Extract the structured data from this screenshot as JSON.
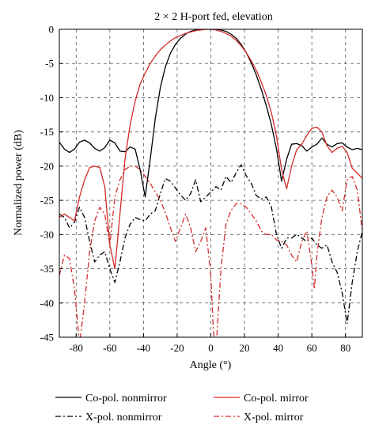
{
  "chart_data": {
    "type": "line",
    "title": "2 × 2 H-port fed, elevation",
    "xlabel": "Angle (°)",
    "ylabel": "Normalized power (dB)",
    "xlim": [
      -90,
      90
    ],
    "ylim": [
      -45,
      0
    ],
    "xticks": [
      -80,
      -60,
      -40,
      -20,
      0,
      20,
      40,
      60,
      80
    ],
    "yticks": [
      0,
      -5,
      -10,
      -15,
      -20,
      -25,
      -30,
      -35,
      -40,
      -45
    ],
    "grid": "dashed",
    "legend_position": "bottom, below plot, two columns",
    "series": [
      {
        "name": "Co-pol. nonmirror",
        "color": "#000000",
        "dash": "solid",
        "x": [
          -90,
          -87,
          -84,
          -81,
          -78,
          -75,
          -72,
          -69,
          -66,
          -63,
          -60,
          -57,
          -54,
          -51,
          -48,
          -45,
          -42,
          -39,
          -36,
          -33,
          -30,
          -27,
          -24,
          -21,
          -18,
          -15,
          -12,
          -9,
          -6,
          -3,
          0,
          3,
          6,
          9,
          12,
          15,
          18,
          21,
          24,
          27,
          30,
          33,
          36,
          39,
          42,
          45,
          48,
          51,
          54,
          57,
          60,
          63,
          66,
          69,
          72,
          75,
          78,
          81,
          84,
          87,
          90
        ],
        "y": [
          -16.5,
          -17.5,
          -18.0,
          -17.5,
          -16.5,
          -16.2,
          -16.6,
          -17.4,
          -17.8,
          -17.3,
          -16.2,
          -16.6,
          -17.8,
          -17.9,
          -17.2,
          -17.5,
          -20.5,
          -24.5,
          -19.0,
          -13.0,
          -8.5,
          -5.5,
          -3.5,
          -2.2,
          -1.3,
          -0.7,
          -0.3,
          -0.1,
          0.0,
          0.0,
          0.0,
          0.0,
          -0.1,
          -0.3,
          -0.7,
          -1.3,
          -2.2,
          -3.4,
          -4.9,
          -6.7,
          -8.8,
          -11.2,
          -14.0,
          -17.5,
          -22.2,
          -19.0,
          -16.8,
          -16.7,
          -17.0,
          -17.8,
          -17.2,
          -16.8,
          -15.9,
          -16.8,
          -17.2,
          -16.7,
          -16.6,
          -17.2,
          -17.6,
          -17.4,
          -17.6
        ]
      },
      {
        "name": "Co-pol. mirror",
        "color": "#d42a2a",
        "dash": "solid",
        "x": [
          -90,
          -87,
          -84,
          -81,
          -78,
          -75,
          -72,
          -69,
          -66,
          -63,
          -60,
          -57,
          -54,
          -51,
          -48,
          -45,
          -42,
          -39,
          -36,
          -33,
          -30,
          -27,
          -24,
          -21,
          -18,
          -15,
          -12,
          -9,
          -6,
          -3,
          0,
          3,
          6,
          9,
          12,
          15,
          18,
          21,
          24,
          27,
          30,
          33,
          36,
          39,
          42,
          45,
          48,
          51,
          54,
          57,
          60,
          63,
          66,
          69,
          72,
          75,
          78,
          81,
          84,
          87,
          90
        ],
        "y": [
          -27.5,
          -27.0,
          -27.5,
          -28.0,
          -24.5,
          -22.0,
          -20.2,
          -20.0,
          -20.2,
          -23.0,
          -31.5,
          -35.0,
          -27.0,
          -19.0,
          -14.0,
          -10.5,
          -8.0,
          -6.4,
          -5.0,
          -3.9,
          -3.0,
          -2.3,
          -1.7,
          -1.2,
          -0.9,
          -0.6,
          -0.4,
          -0.2,
          -0.1,
          0.0,
          0.0,
          -0.1,
          -0.3,
          -0.6,
          -1.0,
          -1.6,
          -2.4,
          -3.4,
          -4.6,
          -6.0,
          -7.7,
          -9.7,
          -12.2,
          -15.6,
          -20.5,
          -23.3,
          -20.0,
          -17.6,
          -16.8,
          -15.5,
          -14.5,
          -14.3,
          -15.0,
          -17.0,
          -18.0,
          -17.4,
          -17.1,
          -18.0,
          -20.3,
          -21.0,
          -21.8
        ]
      },
      {
        "name": "X-pol. nonmirror",
        "color": "#000000",
        "dash": "dashdot",
        "x": [
          -90,
          -87,
          -84,
          -81,
          -78,
          -75,
          -72,
          -69,
          -66,
          -63,
          -60,
          -57,
          -54,
          -51,
          -48,
          -45,
          -42,
          -39,
          -36,
          -33,
          -30,
          -27,
          -24,
          -21,
          -18,
          -15,
          -12,
          -9,
          -6,
          -3,
          0,
          3,
          6,
          9,
          12,
          15,
          18,
          21,
          24,
          27,
          30,
          33,
          36,
          39,
          42,
          45,
          48,
          51,
          54,
          57,
          60,
          63,
          66,
          69,
          72,
          75,
          78,
          81,
          84,
          87,
          90
        ],
        "y": [
          -27.0,
          -27.5,
          -29.0,
          -28.2,
          -26.0,
          -27.5,
          -31.0,
          -34.0,
          -33.0,
          -32.5,
          -35.0,
          -37.0,
          -34.0,
          -30.5,
          -28.5,
          -27.5,
          -27.8,
          -28.0,
          -27.0,
          -26.5,
          -24.0,
          -21.8,
          -22.2,
          -23.2,
          -24.2,
          -25.0,
          -24.0,
          -22.0,
          -25.2,
          -24.5,
          -23.8,
          -23.0,
          -23.5,
          -21.5,
          -22.4,
          -21.0,
          -19.8,
          -21.4,
          -22.5,
          -24.3,
          -24.8,
          -24.5,
          -26.0,
          -30.0,
          -32.0,
          -30.5,
          -30.5,
          -30.0,
          -30.5,
          -31.0,
          -30.5,
          -31.5,
          -32.0,
          -31.5,
          -34.0,
          -35.5,
          -38.5,
          -43.0,
          -37.0,
          -32.5,
          -29.5
        ]
      },
      {
        "name": "X-pol. mirror",
        "color": "#d42a2a",
        "dash": "dashdot",
        "x": [
          -90,
          -87,
          -84,
          -81,
          -78,
          -75,
          -72,
          -69,
          -66,
          -63,
          -60,
          -57,
          -54,
          -51,
          -48,
          -45,
          -42,
          -39,
          -36,
          -33,
          -30,
          -27,
          -24,
          -21,
          -18,
          -15,
          -12,
          -9,
          -6,
          -3,
          0,
          1.5,
          3,
          4.5,
          6,
          9,
          12,
          15,
          18,
          21,
          24,
          27,
          30,
          33,
          36,
          39,
          42,
          45,
          48,
          51,
          54,
          57,
          60,
          61.5,
          63,
          66,
          69,
          72,
          75,
          78,
          81,
          84,
          87,
          90
        ],
        "y": [
          -36.0,
          -33.0,
          -33.5,
          -38.0,
          -46.0,
          -40.0,
          -32.5,
          -28.0,
          -26.0,
          -27.0,
          -31.5,
          -24.5,
          -22.0,
          -20.5,
          -20.0,
          -20.0,
          -20.5,
          -21.5,
          -22.5,
          -23.8,
          -25.0,
          -26.8,
          -29.0,
          -31.0,
          -29.0,
          -27.0,
          -29.0,
          -32.5,
          -31.0,
          -29.0,
          -36.0,
          -44.0,
          -47.0,
          -41.0,
          -35.0,
          -28.5,
          -26.5,
          -25.5,
          -25.5,
          -26.0,
          -27.0,
          -28.0,
          -29.5,
          -30.0,
          -30.0,
          -30.8,
          -31.0,
          -31.5,
          -33.0,
          -34.0,
          -31.0,
          -29.5,
          -34.5,
          -38.0,
          -33.0,
          -27.5,
          -24.5,
          -23.5,
          -24.5,
          -26.5,
          -22.0,
          -21.5,
          -23.5,
          -29.5
        ]
      }
    ]
  }
}
